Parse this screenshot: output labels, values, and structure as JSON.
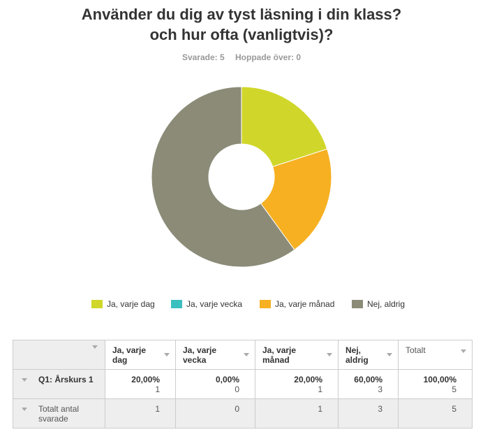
{
  "header": {
    "title_line1": "Använder du dig av tyst läsning i din klass?",
    "title_line2": "och hur ofta (vanligtvis)?",
    "answered_label": "Svarade: 5",
    "skipped_label": "Hoppade över: 0"
  },
  "colors": {
    "ja_varje_dag": "#d0d72a",
    "ja_varje_vecka": "#3cbfbf",
    "ja_varje_manad": "#f6b021",
    "nej_aldrig": "#8b8b78"
  },
  "chart_data": {
    "type": "pie",
    "donut": true,
    "title": "Använder du dig av tyst läsning i din klass? och hur ofta (vanligtvis)?",
    "legend_position": "bottom",
    "slices": [
      {
        "label": "Ja, varje dag",
        "value": 20,
        "color": "#d0d72a"
      },
      {
        "label": "Ja, varje vecka",
        "value": 0,
        "color": "#3cbfbf"
      },
      {
        "label": "Ja, varje månad",
        "value": 20,
        "color": "#f6b021"
      },
      {
        "label": "Nej, aldrig",
        "value": 60,
        "color": "#8b8b78"
      }
    ]
  },
  "table": {
    "headers": [
      "Ja, varje dag",
      "Ja, varje vecka",
      "Ja, varje månad",
      "Nej, aldrig",
      "Totalt"
    ],
    "rows": [
      {
        "label": "Q1: Årskurs 1",
        "cells": [
          {
            "pct": "20,00%",
            "count": "1"
          },
          {
            "pct": "0,00%",
            "count": "0"
          },
          {
            "pct": "20,00%",
            "count": "1"
          },
          {
            "pct": "60,00%",
            "count": "3"
          },
          {
            "pct": "100,00%",
            "count": "5"
          }
        ]
      }
    ],
    "total_row": {
      "label": "Totalt antal svarade",
      "values": [
        "1",
        "0",
        "1",
        "3",
        "5"
      ]
    }
  }
}
